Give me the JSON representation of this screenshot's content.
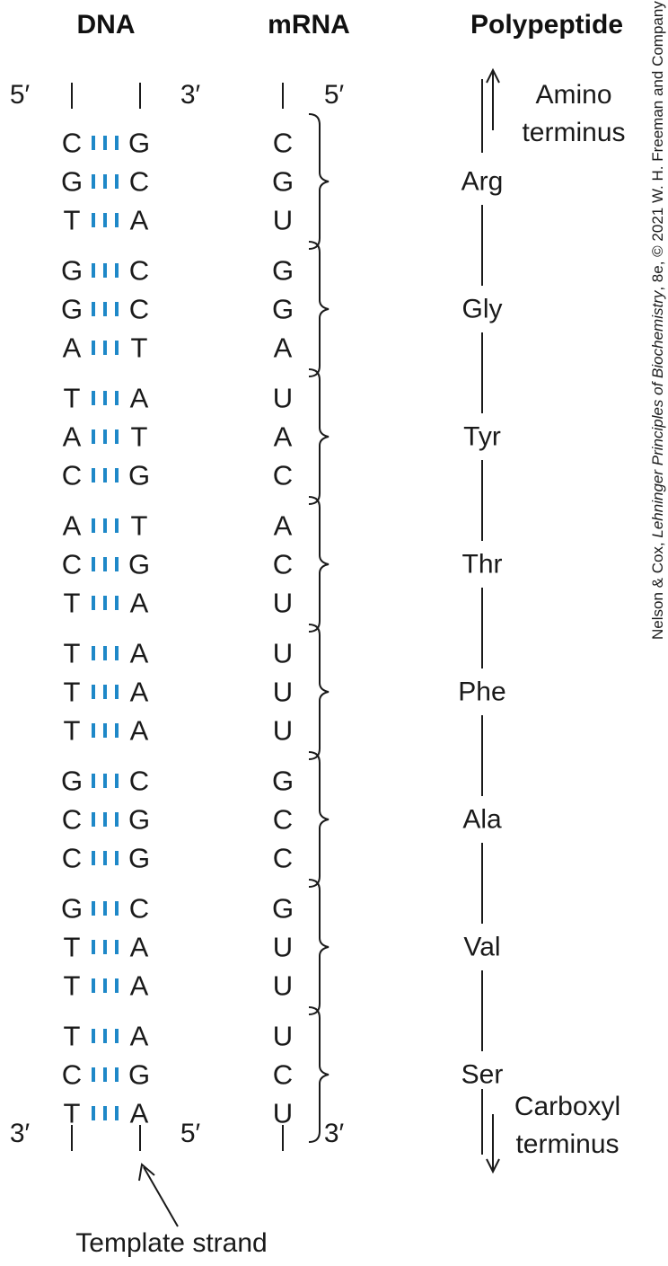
{
  "headers": {
    "dna": "DNA",
    "mrna": "mRNA",
    "polypeptide": "Polypeptide"
  },
  "ends": {
    "dna_left_top": "5′",
    "dna_right_top": "3′",
    "mrna_top": "5′",
    "dna_left_bottom": "3′",
    "dna_right_bottom": "5′",
    "mrna_bottom": "3′"
  },
  "amino_terminus": [
    "Amino",
    "terminus"
  ],
  "carboxyl_terminus": [
    "Carboxyl",
    "terminus"
  ],
  "template_strand_label": "Template strand",
  "credit": {
    "prefix": "Nelson & Cox, ",
    "title": "Lehninger Principles of Biochemistry",
    "suffix": ", 8e, © 2021 W. H. Freeman and Company"
  },
  "colors": {
    "bond": "#1e88c8",
    "text": "#1a1a1a"
  },
  "codons": [
    {
      "template": [
        "C",
        "G",
        "T"
      ],
      "coding": [
        "G",
        "C",
        "A"
      ],
      "mrna": [
        "C",
        "G",
        "U"
      ],
      "amino_acid": "Arg"
    },
    {
      "template": [
        "G",
        "G",
        "A"
      ],
      "coding": [
        "C",
        "C",
        "T"
      ],
      "mrna": [
        "G",
        "G",
        "A"
      ],
      "amino_acid": "Gly"
    },
    {
      "template": [
        "T",
        "A",
        "C"
      ],
      "coding": [
        "A",
        "T",
        "G"
      ],
      "mrna": [
        "U",
        "A",
        "C"
      ],
      "amino_acid": "Tyr"
    },
    {
      "template": [
        "A",
        "C",
        "T"
      ],
      "coding": [
        "T",
        "G",
        "A"
      ],
      "mrna": [
        "A",
        "C",
        "U"
      ],
      "amino_acid": "Thr"
    },
    {
      "template": [
        "T",
        "T",
        "T"
      ],
      "coding": [
        "A",
        "A",
        "A"
      ],
      "mrna": [
        "U",
        "U",
        "U"
      ],
      "amino_acid": "Phe"
    },
    {
      "template": [
        "G",
        "C",
        "C"
      ],
      "coding": [
        "C",
        "G",
        "G"
      ],
      "mrna": [
        "G",
        "C",
        "C"
      ],
      "amino_acid": "Ala"
    },
    {
      "template": [
        "G",
        "T",
        "T"
      ],
      "coding": [
        "C",
        "A",
        "A"
      ],
      "mrna": [
        "G",
        "U",
        "U"
      ],
      "amino_acid": "Val"
    },
    {
      "template": [
        "T",
        "C",
        "T"
      ],
      "coding": [
        "A",
        "G",
        "A"
      ],
      "mrna": [
        "U",
        "C",
        "U"
      ],
      "amino_acid": "Ser"
    }
  ]
}
